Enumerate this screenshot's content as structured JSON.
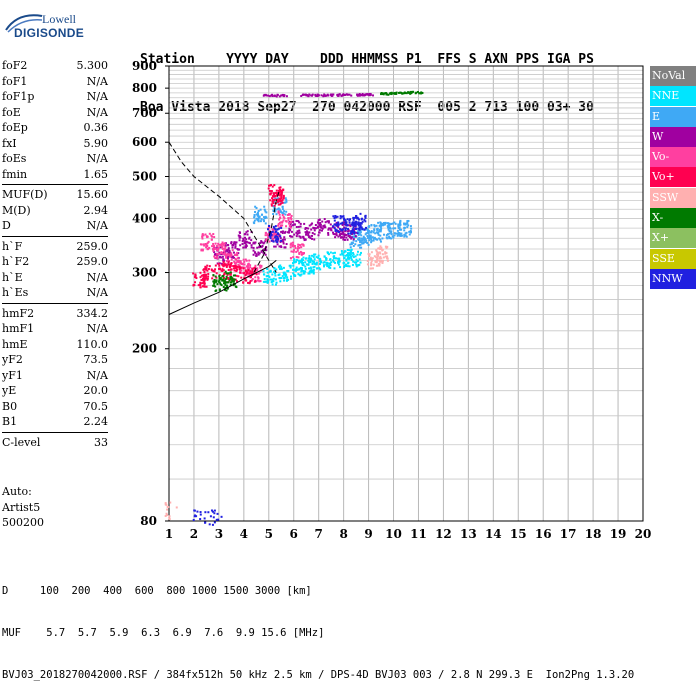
{
  "logo": {
    "line1": "Lowell",
    "line2": "DIGISONDE"
  },
  "header": {
    "line1": "Station    YYYY DAY    DDD HHMMSS P1  FFS S AXN PPS IGA PS",
    "line2": "Boa Vista 2018 Sep27  270 042000 RSF  005 2 713 100 03+ 30"
  },
  "params": [
    {
      "group": [
        {
          "k": "foF2",
          "v": "5.300"
        },
        {
          "k": "foF1",
          "v": "N/A"
        },
        {
          "k": "foF1p",
          "v": "N/A"
        },
        {
          "k": "foE",
          "v": "N/A"
        },
        {
          "k": "foEp",
          "v": "0.36"
        },
        {
          "k": "fxI",
          "v": "5.90"
        },
        {
          "k": "foEs",
          "v": "N/A"
        },
        {
          "k": "fmin",
          "v": "1.65"
        }
      ]
    },
    {
      "group": [
        {
          "k": "MUF(D)",
          "v": "15.60"
        },
        {
          "k": "M(D)",
          "v": "2.94"
        },
        {
          "k": "D",
          "v": "N/A"
        }
      ]
    },
    {
      "group": [
        {
          "k": "h`F",
          "v": "259.0"
        },
        {
          "k": "h`F2",
          "v": "259.0"
        },
        {
          "k": "h`E",
          "v": "N/A"
        },
        {
          "k": "h`Es",
          "v": "N/A"
        }
      ]
    },
    {
      "group": [
        {
          "k": "hmF2",
          "v": "334.2"
        },
        {
          "k": "hmF1",
          "v": "N/A"
        },
        {
          "k": "hmE",
          "v": "110.0"
        },
        {
          "k": "yF2",
          "v": "73.5"
        },
        {
          "k": "yF1",
          "v": "N/A"
        },
        {
          "k": "yE",
          "v": "20.0"
        },
        {
          "k": "B0",
          "v": "70.5"
        },
        {
          "k": "B1",
          "v": "2.24"
        }
      ]
    },
    {
      "group": [
        {
          "k": "C-level",
          "v": "33"
        }
      ]
    }
  ],
  "notes": {
    "line1": "Auto:",
    "line2": "Artist5",
    "line3": "500200"
  },
  "footer": {
    "line1": "D     100  200  400  600  800 1000 1500 3000 [km]",
    "line2": "MUF    5.7  5.7  5.9  6.3  6.9  7.6  9.9 15.6 [MHz]",
    "line3": "BVJ03_2018270042000.RSF / 384fx512h 50 kHz 2.5 km / DPS-4D BVJ03 003 / 2.8 N 299.3 E  Ion2Png 1.3.20"
  },
  "legend": [
    {
      "label": "NoVal",
      "color": "#808080"
    },
    {
      "label": "NNE",
      "color": "#00e5ff"
    },
    {
      "label": "E",
      "color": "#3fa9f5"
    },
    {
      "label": "W",
      "color": "#a000a0"
    },
    {
      "label": "Vo-",
      "color": "#ff3fa0"
    },
    {
      "label": "Vo+",
      "color": "#ff0050"
    },
    {
      "label": "SSW",
      "color": "#ffb0b0"
    },
    {
      "label": "X-",
      "color": "#007a00"
    },
    {
      "label": "X+",
      "color": "#8cc060"
    },
    {
      "label": "SSE",
      "color": "#c8c800"
    },
    {
      "label": "NNW",
      "color": "#2020e0"
    }
  ],
  "chart_data": {
    "type": "scatter",
    "title": "",
    "xlabel": "",
    "ylabel": "",
    "xlim": [
      1,
      20
    ],
    "ylim": [
      80,
      900
    ],
    "x_ticks": [
      "1",
      "2",
      "3",
      "4",
      "5",
      "6",
      "7",
      "8",
      "9",
      "10",
      "11",
      "12",
      "13",
      "14",
      "15",
      "16",
      "17",
      "18",
      "19",
      "20"
    ],
    "y_ticks": [
      "80",
      "200",
      "300",
      "400",
      "500",
      "600",
      "700",
      "800",
      "900"
    ],
    "y_scale": "log",
    "grid": true,
    "series": [
      {
        "name": "NNE",
        "color": "#00e5ff",
        "points": [
          [
            5.6,
            300
          ],
          [
            6.2,
            310
          ],
          [
            6.8,
            318
          ],
          [
            7.4,
            322
          ],
          [
            8.0,
            325
          ],
          [
            8.4,
            326
          ],
          [
            5.0,
            296
          ],
          [
            6.5,
            314
          ]
        ]
      },
      {
        "name": "E",
        "color": "#3fa9f5",
        "points": [
          [
            8.8,
            365
          ],
          [
            9.2,
            372
          ],
          [
            9.6,
            378
          ],
          [
            10.0,
            380
          ],
          [
            10.4,
            382
          ],
          [
            8.5,
            360
          ],
          [
            5.4,
            430
          ],
          [
            4.6,
            410
          ]
        ]
      },
      {
        "name": "W",
        "color": "#a000a0",
        "points": [
          [
            4.0,
            360
          ],
          [
            4.6,
            345
          ],
          [
            5.4,
            360
          ],
          [
            6.0,
            380
          ],
          [
            6.6,
            375
          ],
          [
            7.2,
            385
          ],
          [
            7.8,
            380
          ],
          [
            8.2,
            375
          ],
          [
            3.5,
            340
          ],
          [
            3.0,
            330
          ],
          [
            9.0,
            776
          ],
          [
            8.5,
            776
          ],
          [
            8.0,
            775
          ],
          [
            7.5,
            775
          ],
          [
            7.0,
            774
          ],
          [
            6.5,
            774
          ],
          [
            5.5,
            773
          ],
          [
            5.0,
            773
          ]
        ]
      },
      {
        "name": "Vo-",
        "color": "#ff3fa0",
        "points": [
          [
            2.5,
            355
          ],
          [
            3.0,
            340
          ],
          [
            3.5,
            325
          ],
          [
            4.0,
            310
          ],
          [
            4.4,
            300
          ],
          [
            5.1,
            370
          ],
          [
            5.6,
            400
          ],
          [
            6.1,
            340
          ]
        ]
      },
      {
        "name": "Vo+",
        "color": "#ff0050",
        "points": [
          [
            2.2,
            290
          ],
          [
            2.6,
            300
          ],
          [
            3.2,
            305
          ],
          [
            3.6,
            300
          ],
          [
            4.2,
            298
          ],
          [
            5.3,
            450
          ],
          [
            5.2,
            460
          ]
        ]
      },
      {
        "name": "SSW",
        "color": "#ffb0b0",
        "points": [
          [
            9.2,
            322
          ],
          [
            9.5,
            332
          ],
          [
            1.1,
            85
          ]
        ]
      },
      {
        "name": "X-",
        "color": "#007a00",
        "points": [
          [
            9.7,
            780
          ],
          [
            10.1,
            782
          ],
          [
            10.5,
            784
          ],
          [
            10.9,
            786
          ],
          [
            3.0,
            285
          ],
          [
            3.4,
            290
          ]
        ]
      },
      {
        "name": "NNW",
        "color": "#2020e0",
        "points": [
          [
            7.8,
            390
          ],
          [
            8.3,
            388
          ],
          [
            8.6,
            395
          ],
          [
            5.2,
            370
          ],
          [
            2.2,
            82
          ],
          [
            2.8,
            82
          ]
        ]
      }
    ],
    "curves": [
      {
        "name": "dashed",
        "points": [
          [
            1.0,
            600
          ],
          [
            1.5,
            540
          ],
          [
            2.0,
            500
          ],
          [
            3.0,
            450
          ],
          [
            4.0,
            400
          ],
          [
            5.0,
            320
          ],
          [
            5.3,
            300
          ]
        ]
      },
      {
        "name": "solid",
        "points": [
          [
            1.0,
            240
          ],
          [
            2.0,
            255
          ],
          [
            3.0,
            270
          ],
          [
            4.0,
            290
          ],
          [
            5.0,
            310
          ],
          [
            5.3,
            320
          ]
        ]
      },
      {
        "name": "dashed-bend",
        "points": [
          [
            4.4,
            300
          ],
          [
            4.8,
            330
          ],
          [
            5.1,
            380
          ],
          [
            5.3,
            440
          ],
          [
            5.4,
            460
          ]
        ]
      }
    ]
  }
}
